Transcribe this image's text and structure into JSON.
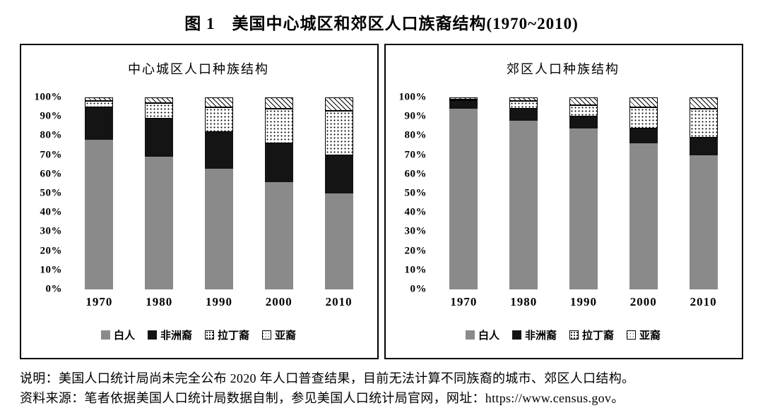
{
  "title": "图 1　美国中心城区和郊区人口族裔结构(1970~2010)",
  "notes": [
    "说明：美国人口统计局尚未完全公布 2020 年人口普查结果，目前无法计算不同族裔的城市、郊区人口结构。",
    "资料来源：笔者依据美国人口统计局数据自制，参见美国人口统计局官网，网址：https://www.census.gov。"
  ],
  "legend": [
    {
      "label": "白人",
      "pattern": "solid-gray",
      "color": "#8a8a8a"
    },
    {
      "label": "非洲裔",
      "pattern": "solid-black",
      "color": "#141414"
    },
    {
      "label": "拉丁裔",
      "pattern": "dots",
      "color": "#ffffff"
    },
    {
      "label": "亚裔",
      "pattern": "hatch",
      "color": "#ffffff"
    }
  ],
  "chart_data": [
    {
      "type": "bar",
      "stacked": true,
      "title": "中心城区人口种族结构",
      "categories": [
        "1970",
        "1980",
        "1990",
        "2000",
        "2010"
      ],
      "series": [
        {
          "name": "白人",
          "values": [
            78,
            69,
            63,
            56,
            50
          ]
        },
        {
          "name": "非洲裔",
          "values": [
            17,
            20,
            19,
            20,
            20
          ]
        },
        {
          "name": "拉丁裔",
          "values": [
            3,
            8,
            13,
            18,
            23
          ]
        },
        {
          "name": "亚裔",
          "values": [
            2,
            3,
            5,
            6,
            7
          ]
        }
      ],
      "ylim": [
        0,
        100
      ],
      "yticks": [
        "100%",
        "90%",
        "80%",
        "70%",
        "60%",
        "50%",
        "40%",
        "30%",
        "20%",
        "10%",
        "0%"
      ],
      "grid": false,
      "legend_position": "bottom"
    },
    {
      "type": "bar",
      "stacked": true,
      "title": "郊区人口种族结构",
      "categories": [
        "1970",
        "1980",
        "1990",
        "2000",
        "2010"
      ],
      "series": [
        {
          "name": "白人",
          "values": [
            94,
            88,
            84,
            76,
            70
          ]
        },
        {
          "name": "非洲裔",
          "values": [
            4,
            6,
            6,
            8,
            9
          ]
        },
        {
          "name": "拉丁裔",
          "values": [
            1,
            4,
            6,
            11,
            15
          ]
        },
        {
          "name": "亚裔",
          "values": [
            1,
            2,
            4,
            5,
            6
          ]
        }
      ],
      "ylim": [
        0,
        100
      ],
      "yticks": [
        "100%",
        "90%",
        "80%",
        "70%",
        "60%",
        "50%",
        "40%",
        "30%",
        "20%",
        "10%",
        "0%"
      ],
      "grid": false,
      "legend_position": "bottom"
    }
  ]
}
